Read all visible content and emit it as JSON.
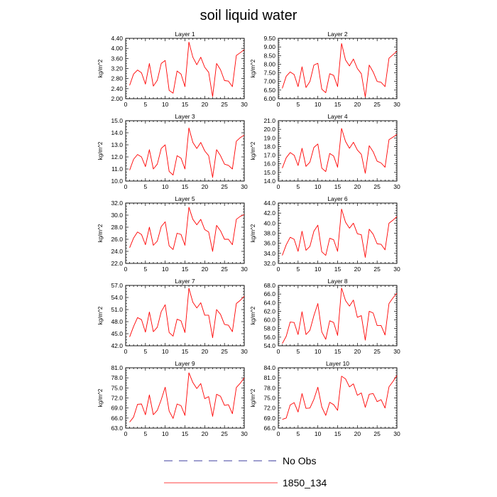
{
  "figure_title": "soil liquid water",
  "legend": [
    {
      "label": "No Obs",
      "color": "#000080",
      "dash": "dashed"
    },
    {
      "label": "1850_134",
      "color": "#ff0000",
      "dash": "solid"
    }
  ],
  "colors": {
    "series": "#ff0000",
    "obs": "#000080",
    "axis": "#000000"
  },
  "chart_data": [
    {
      "type": "line",
      "title": "Layer 1",
      "ylabel": "kg/m^2",
      "xlim": [
        0,
        30
      ],
      "ylim": [
        2.0,
        4.4
      ],
      "xticks": [
        0,
        5,
        10,
        15,
        20,
        25,
        30
      ],
      "yticks": [
        "2.00",
        "2.40",
        "2.80",
        "3.20",
        "3.60",
        "4.00",
        "4.40"
      ],
      "x": [
        1,
        2,
        3,
        4,
        5,
        6,
        7,
        8,
        9,
        10,
        11,
        12,
        13,
        14,
        15,
        16,
        17,
        18,
        19,
        20,
        21,
        22,
        23,
        24,
        25,
        26,
        27,
        28,
        29,
        30
      ],
      "series": [
        {
          "name": "1850_134",
          "values": [
            2.53,
            2.98,
            3.14,
            3.03,
            2.58,
            3.4,
            2.5,
            2.73,
            3.4,
            3.52,
            2.33,
            2.22,
            3.1,
            2.98,
            2.48,
            4.25,
            3.65,
            3.35,
            3.65,
            3.25,
            3.05,
            2.08,
            3.4,
            3.15,
            2.72,
            2.7,
            2.48,
            3.72,
            3.83,
            3.95
          ]
        }
      ]
    },
    {
      "type": "line",
      "title": "Layer 2",
      "ylabel": "kg/m^2",
      "xlim": [
        0,
        30
      ],
      "ylim": [
        6.0,
        9.5
      ],
      "xticks": [
        0,
        5,
        10,
        15,
        20,
        25,
        30
      ],
      "yticks": [
        "6.00",
        "6.50",
        "7.00",
        "7.50",
        "8.00",
        "8.50",
        "9.00",
        "9.50"
      ],
      "x": [
        1,
        2,
        3,
        4,
        5,
        6,
        7,
        8,
        9,
        10,
        11,
        12,
        13,
        14,
        15,
        16,
        17,
        18,
        19,
        20,
        21,
        22,
        23,
        24,
        25,
        26,
        27,
        28,
        29,
        30
      ],
      "series": [
        {
          "name": "1850_134",
          "values": [
            6.6,
            7.3,
            7.55,
            7.4,
            6.7,
            7.85,
            6.65,
            7.0,
            7.95,
            8.05,
            6.55,
            6.35,
            7.45,
            7.35,
            6.7,
            9.2,
            8.25,
            7.9,
            8.3,
            7.75,
            7.45,
            6.1,
            7.95,
            7.55,
            7.0,
            6.95,
            6.7,
            8.35,
            8.55,
            8.75
          ]
        }
      ]
    },
    {
      "type": "line",
      "title": "Layer 3",
      "ylabel": "kg/m^2",
      "xlim": [
        0,
        30
      ],
      "ylim": [
        10.0,
        15.0
      ],
      "xticks": [
        0,
        5,
        10,
        15,
        20,
        25,
        30
      ],
      "yticks": [
        "10.0",
        "11.0",
        "12.0",
        "13.0",
        "14.0",
        "15.0"
      ],
      "x": [
        1,
        2,
        3,
        4,
        5,
        6,
        7,
        8,
        9,
        10,
        11,
        12,
        13,
        14,
        15,
        16,
        17,
        18,
        19,
        20,
        21,
        22,
        23,
        24,
        25,
        26,
        27,
        28,
        29,
        30
      ],
      "series": [
        {
          "name": "1850_134",
          "values": [
            10.9,
            11.8,
            12.2,
            12.0,
            11.2,
            12.6,
            11.0,
            11.4,
            12.7,
            13.0,
            10.8,
            10.5,
            12.1,
            11.9,
            11.0,
            14.4,
            13.2,
            12.7,
            13.2,
            12.5,
            12.1,
            10.3,
            12.6,
            12.1,
            11.4,
            11.3,
            11.0,
            13.3,
            13.6,
            13.8
          ]
        }
      ]
    },
    {
      "type": "line",
      "title": "Layer 4",
      "ylabel": "kg/m^2",
      "xlim": [
        0,
        30
      ],
      "ylim": [
        14.0,
        21.0
      ],
      "xticks": [
        0,
        5,
        10,
        15,
        20,
        25,
        30
      ],
      "yticks": [
        "14.0",
        "15.0",
        "16.0",
        "17.0",
        "18.0",
        "19.0",
        "20.0",
        "21.0"
      ],
      "x": [
        1,
        2,
        3,
        4,
        5,
        6,
        7,
        8,
        9,
        10,
        11,
        12,
        13,
        14,
        15,
        16,
        17,
        18,
        19,
        20,
        21,
        22,
        23,
        24,
        25,
        26,
        27,
        28,
        29,
        30
      ],
      "series": [
        {
          "name": "1850_134",
          "values": [
            15.5,
            16.7,
            17.3,
            17.0,
            15.8,
            17.8,
            15.7,
            16.2,
            17.9,
            18.3,
            15.5,
            15.1,
            17.2,
            16.9,
            15.6,
            20.1,
            18.6,
            17.8,
            18.5,
            17.6,
            17.1,
            14.9,
            18.1,
            17.4,
            16.3,
            16.1,
            15.6,
            18.8,
            19.1,
            19.4
          ]
        }
      ]
    },
    {
      "type": "line",
      "title": "Layer 5",
      "ylabel": "kg/m^2",
      "xlim": [
        0,
        30
      ],
      "ylim": [
        22.0,
        32.0
      ],
      "xticks": [
        0,
        5,
        10,
        15,
        20,
        25,
        30
      ],
      "yticks": [
        "22.0",
        "24.0",
        "26.0",
        "28.0",
        "30.0",
        "32.0"
      ],
      "x": [
        1,
        2,
        3,
        4,
        5,
        6,
        7,
        8,
        9,
        10,
        11,
        12,
        13,
        14,
        15,
        16,
        17,
        18,
        19,
        20,
        21,
        22,
        23,
        24,
        25,
        26,
        27,
        28,
        29,
        30
      ],
      "series": [
        {
          "name": "1850_134",
          "values": [
            24.6,
            26.2,
            27.2,
            26.8,
            25.1,
            28.0,
            25.0,
            25.7,
            28.1,
            28.9,
            24.9,
            24.3,
            27.0,
            26.8,
            25.0,
            31.3,
            29.3,
            28.4,
            29.3,
            27.6,
            27.2,
            24.0,
            28.3,
            27.4,
            26.0,
            26.0,
            25.1,
            29.3,
            29.8,
            30.1
          ]
        }
      ]
    },
    {
      "type": "line",
      "title": "Layer 6",
      "ylabel": "kg/m^2",
      "xlim": [
        0,
        30
      ],
      "ylim": [
        32.0,
        44.0
      ],
      "xticks": [
        0,
        5,
        10,
        15,
        20,
        25,
        30
      ],
      "yticks": [
        "32.0",
        "34.0",
        "36.0",
        "38.0",
        "40.0",
        "42.0",
        "44.0"
      ],
      "x": [
        1,
        2,
        3,
        4,
        5,
        6,
        7,
        8,
        9,
        10,
        11,
        12,
        13,
        14,
        15,
        16,
        17,
        18,
        19,
        20,
        21,
        22,
        23,
        24,
        25,
        26,
        27,
        28,
        29,
        30
      ],
      "series": [
        {
          "name": "1850_134",
          "values": [
            33.6,
            35.7,
            37.2,
            36.8,
            34.4,
            38.4,
            34.6,
            35.4,
            38.4,
            39.6,
            34.3,
            33.6,
            37.0,
            36.7,
            34.4,
            42.8,
            40.2,
            39.0,
            40.0,
            37.9,
            37.7,
            33.2,
            38.8,
            37.8,
            35.9,
            35.8,
            34.7,
            40.0,
            40.6,
            41.3
          ]
        }
      ]
    },
    {
      "type": "line",
      "title": "Layer 7",
      "ylabel": "kg/m^2",
      "xlim": [
        0,
        30
      ],
      "ylim": [
        42.0,
        57.0
      ],
      "xticks": [
        0,
        5,
        10,
        15,
        20,
        25,
        30
      ],
      "yticks": [
        "42.0",
        "45.0",
        "48.0",
        "51.0",
        "54.0",
        "57.0"
      ],
      "x": [
        1,
        2,
        3,
        4,
        5,
        6,
        7,
        8,
        9,
        10,
        11,
        12,
        13,
        14,
        15,
        16,
        17,
        18,
        19,
        20,
        21,
        22,
        23,
        24,
        25,
        26,
        27,
        28,
        29,
        30
      ],
      "series": [
        {
          "name": "1850_134",
          "values": [
            44.2,
            46.8,
            49.0,
            48.5,
            45.4,
            50.4,
            45.5,
            46.6,
            50.5,
            52.2,
            45.3,
            44.4,
            48.6,
            48.2,
            45.3,
            56.3,
            52.8,
            51.4,
            52.7,
            49.6,
            49.6,
            44.0,
            51.0,
            49.8,
            47.3,
            47.1,
            45.5,
            52.5,
            53.3,
            54.3
          ]
        }
      ]
    },
    {
      "type": "line",
      "title": "Layer 8",
      "ylabel": "kg/m^2",
      "xlim": [
        0,
        30
      ],
      "ylim": [
        54.0,
        68.0
      ],
      "xticks": [
        0,
        5,
        10,
        15,
        20,
        25,
        30
      ],
      "yticks": [
        "54.0",
        "56.0",
        "58.0",
        "60.0",
        "62.0",
        "64.0",
        "66.0",
        "68.0"
      ],
      "x": [
        1,
        2,
        3,
        4,
        5,
        6,
        7,
        8,
        9,
        10,
        11,
        12,
        13,
        14,
        15,
        16,
        17,
        18,
        19,
        20,
        21,
        22,
        23,
        24,
        25,
        26,
        27,
        28,
        29,
        30
      ],
      "series": [
        {
          "name": "1850_134",
          "values": [
            54.5,
            56.2,
            59.5,
            59.4,
            56.6,
            61.9,
            56.6,
            57.6,
            61.0,
            63.8,
            57.2,
            55.5,
            59.8,
            59.4,
            56.4,
            67.4,
            64.5,
            63.2,
            64.6,
            60.6,
            61.0,
            55.3,
            62.0,
            61.6,
            58.7,
            58.7,
            56.5,
            63.8,
            65.1,
            66.2
          ]
        }
      ]
    },
    {
      "type": "line",
      "title": "Layer 9",
      "ylabel": "kg/m^2",
      "xlim": [
        0,
        30
      ],
      "ylim": [
        63.0,
        81.0
      ],
      "xticks": [
        0,
        5,
        10,
        15,
        20,
        25,
        30
      ],
      "yticks": [
        "63.0",
        "66.0",
        "69.0",
        "72.0",
        "75.0",
        "78.0",
        "81.0"
      ],
      "x": [
        1,
        2,
        3,
        4,
        5,
        6,
        7,
        8,
        9,
        10,
        11,
        12,
        13,
        14,
        15,
        16,
        17,
        18,
        19,
        20,
        21,
        22,
        23,
        24,
        25,
        26,
        27,
        28,
        29,
        30
      ],
      "series": [
        {
          "name": "1850_134",
          "values": [
            64.8,
            66.3,
            70.1,
            70.2,
            67.0,
            72.9,
            67.0,
            68.3,
            71.5,
            75.2,
            68.1,
            65.9,
            70.2,
            69.7,
            66.8,
            79.5,
            76.6,
            74.8,
            76.3,
            71.8,
            72.4,
            66.5,
            73.1,
            72.5,
            69.8,
            70.0,
            67.3,
            75.1,
            76.4,
            78.0
          ]
        }
      ]
    },
    {
      "type": "line",
      "title": "Layer 10",
      "ylabel": "kg/m^2",
      "xlim": [
        0,
        30
      ],
      "ylim": [
        66.0,
        84.0
      ],
      "xticks": [
        0,
        5,
        10,
        15,
        20,
        25,
        30
      ],
      "yticks": [
        "66.0",
        "69.0",
        "72.0",
        "75.0",
        "78.0",
        "81.0",
        "84.0"
      ],
      "x": [
        1,
        2,
        3,
        4,
        5,
        6,
        7,
        8,
        9,
        10,
        11,
        12,
        13,
        14,
        15,
        16,
        17,
        18,
        19,
        20,
        21,
        22,
        23,
        24,
        25,
        26,
        27,
        28,
        29,
        30
      ],
      "series": [
        {
          "name": "1850_134",
          "values": [
            68.6,
            69.0,
            72.9,
            73.6,
            70.8,
            76.3,
            71.9,
            72.0,
            74.6,
            78.2,
            72.3,
            69.8,
            73.7,
            73.0,
            71.3,
            81.5,
            80.7,
            78.3,
            79.2,
            75.8,
            76.5,
            72.2,
            76.1,
            76.3,
            73.9,
            74.5,
            72.0,
            78.3,
            79.9,
            81.7
          ]
        }
      ]
    }
  ]
}
